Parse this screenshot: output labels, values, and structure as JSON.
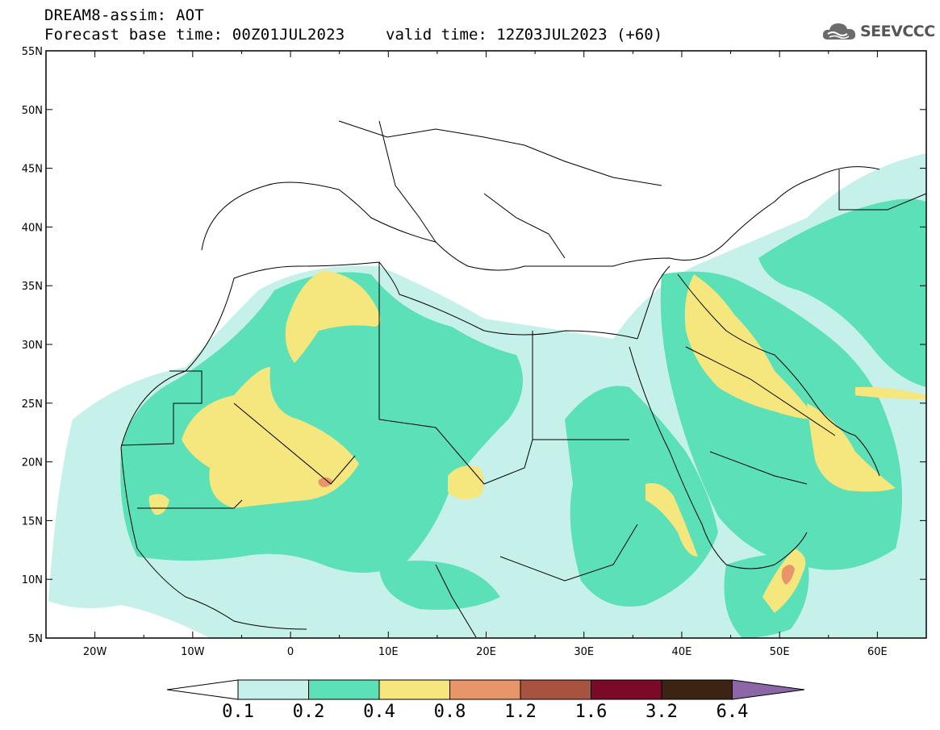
{
  "header": {
    "title": "DREAM8-assim: AOT",
    "base_time": "Forecast base time: 00Z01JUL2023",
    "valid_time": "valid time: 12Z03JUL2023 (+60)"
  },
  "logo": {
    "text": "SEEVCCC",
    "icon": "cloud-icon"
  },
  "map": {
    "lon_range": [
      -25,
      65
    ],
    "lat_range": [
      5,
      55
    ],
    "lon_ticks": [
      {
        "value": -20,
        "label": "20W"
      },
      {
        "value": -10,
        "label": "10W"
      },
      {
        "value": 0,
        "label": "0"
      },
      {
        "value": 10,
        "label": "10E"
      },
      {
        "value": 20,
        "label": "20E"
      },
      {
        "value": 30,
        "label": "30E"
      },
      {
        "value": 40,
        "label": "40E"
      },
      {
        "value": 50,
        "label": "50E"
      },
      {
        "value": 60,
        "label": "60E"
      }
    ],
    "lat_ticks": [
      {
        "value": 5,
        "label": "5N"
      },
      {
        "value": 10,
        "label": "10N"
      },
      {
        "value": 15,
        "label": "15N"
      },
      {
        "value": 20,
        "label": "20N"
      },
      {
        "value": 25,
        "label": "25N"
      },
      {
        "value": 30,
        "label": "30N"
      },
      {
        "value": 35,
        "label": "35N"
      },
      {
        "value": 40,
        "label": "40N"
      },
      {
        "value": 45,
        "label": "45N"
      },
      {
        "value": 50,
        "label": "50N"
      },
      {
        "value": 55,
        "label": "55N"
      }
    ]
  },
  "colorbar": {
    "labels": [
      "0.1",
      "0.2",
      "0.4",
      "0.8",
      "1.2",
      "1.6",
      "3.2",
      "6.4"
    ],
    "colors": [
      "#c6f0ea",
      "#5ce0b8",
      "#f5e67d",
      "#e8956a",
      "#a8533f",
      "#7a0a28",
      "#3b2413",
      "#8b67a8"
    ]
  },
  "colors": {
    "level1": "#c6f0ea",
    "level2": "#5ce0b8",
    "level3": "#f5e67d",
    "level4": "#e8956a"
  }
}
